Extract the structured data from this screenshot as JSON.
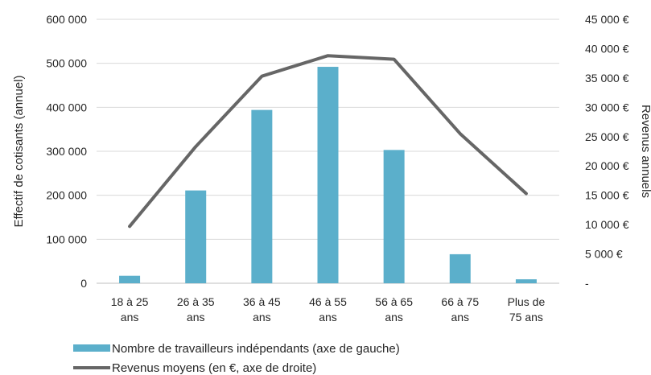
{
  "chart_data": {
    "type": "bar",
    "categories": [
      [
        "18 à 25",
        "ans"
      ],
      [
        "26 à 35",
        "ans"
      ],
      [
        "36 à 45",
        "ans"
      ],
      [
        "46 à 55",
        "ans"
      ],
      [
        "56 à 65",
        "ans"
      ],
      [
        "66 à 75",
        "ans"
      ],
      [
        "Plus de",
        "75 ans"
      ]
    ],
    "series": [
      {
        "name": "Nombre de travailleurs indépendants (axe de gauche)",
        "type": "bar",
        "axis": "left",
        "color": "#5BAFCB",
        "values": [
          17000,
          211000,
          394000,
          492000,
          303000,
          66000,
          9000
        ]
      },
      {
        "name": "Revenus moyens (en €, axe de droite)",
        "type": "line",
        "axis": "right",
        "color": "#666666",
        "values": [
          9700,
          23300,
          35300,
          38800,
          38200,
          25500,
          15300
        ]
      }
    ],
    "ylabel": "Effectif de cotisants (annuel)",
    "y2label": "Revenus annuels",
    "ylim": [
      0,
      600000
    ],
    "y2lim": [
      0,
      45000
    ],
    "yticks": [
      "0",
      "100 000",
      "200 000",
      "300 000",
      "400 000",
      "500 000",
      "600 000"
    ],
    "y2ticks": [
      "-",
      "5 000 €",
      "10 000 €",
      "15 000 €",
      "20 000 €",
      "25 000 €",
      "30 000 €",
      "35 000 €",
      "40 000 €",
      "45 000 €"
    ],
    "grid": true,
    "legend_position": "bottom"
  }
}
